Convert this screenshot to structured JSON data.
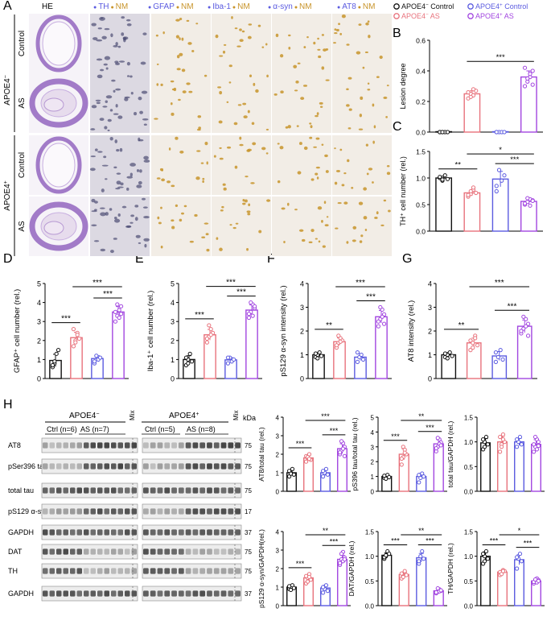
{
  "colors": {
    "black": "#111111",
    "red": "#e8727c",
    "blue": "#5b5be0",
    "purple": "#a246e0",
    "nm": "#c8942a",
    "he": "#a27bc8",
    "tissue": "#f1ece6",
    "blot": "#3a3a3a"
  },
  "panel_letters": [
    "A",
    "B",
    "C",
    "D",
    "E",
    "F",
    "G",
    "H"
  ],
  "panelA": {
    "column_headers": [
      {
        "marker": "HE",
        "nm": ""
      },
      {
        "marker": "TH",
        "nm": "NM"
      },
      {
        "marker": "GFAP",
        "nm": "NM"
      },
      {
        "marker": "Iba-1",
        "nm": "NM"
      },
      {
        "marker": "α-syn",
        "nm": "NM"
      },
      {
        "marker": "AT8",
        "nm": "NM"
      }
    ],
    "group_labels": [
      "APOE4",
      "APOE4"
    ],
    "group_sup": [
      "−",
      "+"
    ],
    "row_labels": [
      "Control",
      "AS",
      "Control",
      "AS"
    ]
  },
  "legend": [
    {
      "label": "APOE4",
      "sup": "−",
      "suffix": " Control",
      "color_key": "black"
    },
    {
      "label": "APOE4",
      "sup": "+",
      "suffix": " Control",
      "color_key": "blue"
    },
    {
      "label": "APOE4",
      "sup": "−",
      "suffix": " AS",
      "color_key": "red"
    },
    {
      "label": "APOE4",
      "sup": "+",
      "suffix": " AS",
      "color_key": "purple"
    }
  ],
  "panelH_blot": {
    "group_headers": [
      {
        "label": "APOE4",
        "sup": "−"
      },
      {
        "label": "APOE4",
        "sup": "+"
      }
    ],
    "subgroups": [
      "Ctrl (n=6)",
      "AS (n=7)",
      "Ctrl (n=5)",
      "AS (n=8)"
    ],
    "mix": "Mix",
    "kda": "kDa",
    "rows": [
      {
        "label": "AT8",
        "kda": "75"
      },
      {
        "label": "pSer396 tau",
        "kda": "75"
      },
      {
        "label": "total tau",
        "kda": "75"
      },
      {
        "label": "pS129 α-syn",
        "kda": "17"
      },
      {
        "label": "GAPDH",
        "kda": "37"
      },
      {
        "label": "DAT",
        "kda": "75"
      },
      {
        "label": "TH",
        "kda": "75"
      },
      {
        "label": "GAPDH",
        "kda": "37"
      }
    ]
  },
  "chart_data": [
    {
      "id": "B",
      "type": "bar",
      "ylabel": "Lesion degree",
      "ylim": [
        0,
        0.6
      ],
      "yticks": [
        "0.0",
        "0.2",
        "0.4",
        "0.6"
      ],
      "values": [
        0.0,
        0.25,
        0.0,
        0.36
      ],
      "points": [
        [
          0,
          0,
          0,
          0,
          0,
          0
        ],
        [
          0.22,
          0.25,
          0.24,
          0.27,
          0.26,
          0.23,
          0.28
        ],
        [
          0,
          0,
          0,
          0,
          0
        ],
        [
          0.3,
          0.33,
          0.36,
          0.4,
          0.42,
          0.35,
          0.38,
          0.31
        ]
      ],
      "sig": [
        {
          "a": 1,
          "b": 3,
          "label": "***",
          "level": 0
        }
      ]
    },
    {
      "id": "C",
      "type": "bar",
      "ylabel": "TH⁺ cell number (rel.)",
      "ylim": [
        0,
        1.5
      ],
      "yticks": [
        "0.0",
        "0.5",
        "1.0",
        "1.5"
      ],
      "values": [
        1.0,
        0.72,
        0.98,
        0.56
      ],
      "points": [
        [
          1.0,
          0.95,
          1.05,
          0.98,
          1.02,
          0.97
        ],
        [
          0.65,
          0.7,
          0.78,
          0.72,
          0.68,
          0.75,
          0.82
        ],
        [
          0.85,
          1.15,
          0.95,
          1.05,
          0.75
        ],
        [
          0.5,
          0.55,
          0.6,
          0.58,
          0.52,
          0.62,
          0.48,
          0.57
        ]
      ],
      "sig": [
        {
          "a": 0,
          "b": 1,
          "label": "**",
          "level": 0
        },
        {
          "a": 2,
          "b": 3,
          "label": "***",
          "level": 0
        },
        {
          "a": 1,
          "b": 3,
          "label": "*",
          "level": 1
        }
      ]
    },
    {
      "id": "D",
      "type": "bar",
      "ylabel": "GFAP⁺ cell number (rel.)",
      "ylim": [
        0,
        5
      ],
      "yticks": [
        "0",
        "1",
        "2",
        "3",
        "4",
        "5"
      ],
      "values": [
        0.95,
        2.15,
        1.05,
        3.5
      ],
      "points": [
        [
          0.6,
          0.8,
          1.3,
          1.5,
          0.7,
          0.9
        ],
        [
          1.7,
          2.0,
          2.4,
          2.1,
          2.6,
          1.9,
          2.3
        ],
        [
          0.8,
          1.2,
          1.0,
          1.1,
          0.9
        ],
        [
          3.0,
          3.3,
          3.6,
          3.8,
          3.5,
          3.9,
          3.2,
          3.4
        ]
      ],
      "sig": [
        {
          "a": 0,
          "b": 1,
          "label": "***",
          "level": 0
        },
        {
          "a": 2,
          "b": 3,
          "label": "***",
          "level": 0
        },
        {
          "a": 1,
          "b": 3,
          "label": "***",
          "level": 1
        }
      ]
    },
    {
      "id": "E",
      "type": "bar",
      "ylabel": "Iba-1⁺ cell number (rel.)",
      "ylim": [
        0,
        5
      ],
      "yticks": [
        "0",
        "1",
        "2",
        "3",
        "4",
        "5"
      ],
      "values": [
        1.0,
        2.3,
        0.98,
        3.6
      ],
      "points": [
        [
          0.7,
          1.0,
          1.3,
          0.9,
          1.1,
          0.8
        ],
        [
          1.9,
          2.2,
          2.6,
          2.4,
          2.1,
          2.8,
          2.3
        ],
        [
          0.8,
          1.1,
          0.9,
          1.0,
          1.1
        ],
        [
          3.2,
          3.5,
          3.9,
          3.7,
          3.4,
          4.0,
          3.3,
          3.8
        ]
      ],
      "sig": [
        {
          "a": 0,
          "b": 1,
          "label": "***",
          "level": 0
        },
        {
          "a": 2,
          "b": 3,
          "label": "***",
          "level": 0
        },
        {
          "a": 1,
          "b": 3,
          "label": "***",
          "level": 1
        }
      ]
    },
    {
      "id": "F",
      "type": "bar",
      "ylabel": "pS129 α-syn intensity (rel.)",
      "ylim": [
        0,
        4
      ],
      "yticks": [
        "0",
        "1",
        "2",
        "3",
        "4"
      ],
      "values": [
        1.0,
        1.55,
        0.9,
        2.6
      ],
      "points": [
        [
          0.9,
          1.0,
          1.1,
          0.95,
          1.05,
          0.85
        ],
        [
          1.3,
          1.5,
          1.7,
          1.6,
          1.4,
          1.8,
          1.55
        ],
        [
          0.7,
          0.9,
          1.0,
          0.8,
          1.1
        ],
        [
          2.2,
          2.5,
          2.9,
          2.7,
          2.4,
          3.0,
          2.6,
          2.3
        ]
      ],
      "sig": [
        {
          "a": 0,
          "b": 1,
          "label": "**",
          "level": 0
        },
        {
          "a": 2,
          "b": 3,
          "label": "***",
          "level": 0
        },
        {
          "a": 1,
          "b": 3,
          "label": "***",
          "level": 1
        }
      ]
    },
    {
      "id": "G",
      "type": "bar",
      "ylabel": "AT8 intensity (rel.)",
      "ylim": [
        0,
        4
      ],
      "yticks": [
        "0",
        "1",
        "2",
        "3",
        "4"
      ],
      "values": [
        1.0,
        1.5,
        0.95,
        2.2
      ],
      "points": [
        [
          0.9,
          1.0,
          1.1,
          0.95,
          1.05,
          0.85
        ],
        [
          1.2,
          1.5,
          1.8,
          1.4,
          1.6,
          1.3,
          1.7
        ],
        [
          0.7,
          0.9,
          1.2,
          0.8,
          1.1
        ],
        [
          1.9,
          2.1,
          2.5,
          2.3,
          2.0,
          2.6,
          2.2,
          1.8
        ]
      ],
      "sig": [
        {
          "a": 0,
          "b": 1,
          "label": "**",
          "level": 0
        },
        {
          "a": 2,
          "b": 3,
          "label": "***",
          "level": 0
        },
        {
          "a": 1,
          "b": 3,
          "label": "***",
          "level": 1
        }
      ]
    },
    {
      "id": "H1",
      "type": "bar",
      "ylabel": "AT8/total tau (rel.)",
      "ylim": [
        0,
        4
      ],
      "yticks": [
        "0",
        "1",
        "2",
        "3",
        "4"
      ],
      "values": [
        1.0,
        1.8,
        1.0,
        2.3
      ],
      "points": [
        [
          0.8,
          1.0,
          1.2,
          0.9,
          1.1,
          0.95
        ],
        [
          1.6,
          1.8,
          2.0,
          1.7,
          1.9,
          1.85,
          1.75
        ],
        [
          0.8,
          1.0,
          1.2,
          0.9,
          1.1
        ],
        [
          2.0,
          2.2,
          2.6,
          2.4,
          2.1,
          2.7,
          2.3,
          1.9
        ]
      ],
      "sig": [
        {
          "a": 0,
          "b": 1,
          "label": "***",
          "level": 0
        },
        {
          "a": 2,
          "b": 3,
          "label": "***",
          "level": 0
        },
        {
          "a": 1,
          "b": 3,
          "label": "***",
          "level": 1
        }
      ]
    },
    {
      "id": "H2",
      "type": "bar",
      "ylabel": "pS396 tau/total tau (rel.)",
      "ylim": [
        0,
        5
      ],
      "yticks": [
        "0",
        "1",
        "2",
        "3",
        "4",
        "5"
      ],
      "values": [
        1.0,
        2.5,
        1.0,
        3.2
      ],
      "points": [
        [
          0.9,
          1.0,
          1.1,
          0.95,
          1.05,
          0.85
        ],
        [
          1.8,
          2.3,
          2.8,
          2.5,
          2.2,
          3.0,
          2.6
        ],
        [
          0.6,
          0.9,
          1.2,
          1.0,
          1.1
        ],
        [
          2.7,
          3.0,
          3.5,
          3.3,
          2.9,
          3.6,
          3.2,
          3.1
        ]
      ],
      "sig": [
        {
          "a": 0,
          "b": 1,
          "label": "***",
          "level": 0
        },
        {
          "a": 2,
          "b": 3,
          "label": "***",
          "level": 0
        },
        {
          "a": 1,
          "b": 3,
          "label": "**",
          "level": 1
        }
      ]
    },
    {
      "id": "H3",
      "type": "bar",
      "ylabel": "total tau/GAPDH (rel.)",
      "ylim": [
        0,
        1.5
      ],
      "yticks": [
        "0.0",
        "0.5",
        "1.0",
        "1.5"
      ],
      "values": [
        0.98,
        1.0,
        1.0,
        0.95
      ],
      "points": [
        [
          0.85,
          1.0,
          1.1,
          0.95,
          1.05,
          0.9
        ],
        [
          0.8,
          0.95,
          1.15,
          1.0,
          1.1,
          0.9,
          1.05
        ],
        [
          0.9,
          1.0,
          1.1,
          0.95,
          1.05
        ],
        [
          0.8,
          0.9,
          1.05,
          1.0,
          0.95,
          1.1,
          0.85,
          0.92
        ]
      ],
      "sig": []
    },
    {
      "id": "H4",
      "type": "bar",
      "ylabel": "pS129 α-syn/GAPDH(rel.)",
      "ylim": [
        0,
        4
      ],
      "yticks": [
        "0",
        "1",
        "2",
        "3",
        "4"
      ],
      "values": [
        1.0,
        1.5,
        0.95,
        2.5
      ],
      "points": [
        [
          0.9,
          1.0,
          1.1,
          0.95,
          1.05,
          0.85
        ],
        [
          1.2,
          1.5,
          1.7,
          1.4,
          1.6,
          1.3,
          1.55
        ],
        [
          0.7,
          0.9,
          1.1,
          0.8,
          1.0
        ],
        [
          2.2,
          2.5,
          2.9,
          2.6,
          2.3,
          2.8,
          2.4,
          2.5
        ]
      ],
      "sig": [
        {
          "a": 0,
          "b": 1,
          "label": "***",
          "level": 0
        },
        {
          "a": 2,
          "b": 3,
          "label": "***",
          "level": 0
        },
        {
          "a": 1,
          "b": 3,
          "label": "**",
          "level": 1
        }
      ]
    },
    {
      "id": "H5",
      "type": "bar",
      "ylabel": "DAT/GAPDH (rel.)",
      "ylim": [
        0,
        1.5
      ],
      "yticks": [
        "0.0",
        "0.5",
        "1.0",
        "1.5"
      ],
      "values": [
        1.02,
        0.63,
        0.97,
        0.3
      ],
      "points": [
        [
          0.95,
          1.0,
          1.1,
          1.05,
          0.98,
          1.02
        ],
        [
          0.55,
          0.6,
          0.68,
          0.62,
          0.65,
          0.58,
          0.7
        ],
        [
          0.85,
          1.0,
          1.1,
          0.95,
          0.9
        ],
        [
          0.25,
          0.28,
          0.33,
          0.3,
          0.27,
          0.35,
          0.29,
          0.31
        ]
      ],
      "sig": [
        {
          "a": 0,
          "b": 1,
          "label": "***",
          "level": 0
        },
        {
          "a": 2,
          "b": 3,
          "label": "***",
          "level": 0
        },
        {
          "a": 1,
          "b": 3,
          "label": "**",
          "level": 1
        }
      ]
    },
    {
      "id": "H6",
      "type": "bar",
      "ylabel": "TH/GAPDH (rel.)",
      "ylim": [
        0,
        1.5
      ],
      "yticks": [
        "0.0",
        "0.5",
        "1.0",
        "1.5"
      ],
      "values": [
        1.0,
        0.68,
        0.93,
        0.5
      ],
      "points": [
        [
          0.85,
          1.0,
          1.1,
          0.95,
          1.05,
          0.9
        ],
        [
          0.62,
          0.66,
          0.72,
          0.7,
          0.68,
          0.64,
          0.7
        ],
        [
          0.75,
          0.95,
          1.05,
          0.9,
          0.98
        ],
        [
          0.45,
          0.5,
          0.55,
          0.52,
          0.48,
          0.53,
          0.47,
          0.5
        ]
      ],
      "sig": [
        {
          "a": 0,
          "b": 1,
          "label": "***",
          "level": 0
        },
        {
          "a": 2,
          "b": 3,
          "label": "***",
          "level": 0
        },
        {
          "a": 1,
          "b": 3,
          "label": "*",
          "level": 1
        }
      ]
    }
  ]
}
